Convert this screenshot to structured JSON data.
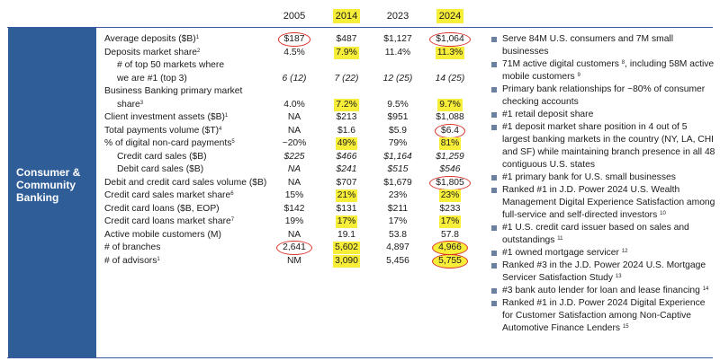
{
  "columns": [
    {
      "label": "2005",
      "highlight": false
    },
    {
      "label": "2014",
      "highlight": true
    },
    {
      "label": "2023",
      "highlight": false
    },
    {
      "label": "2024",
      "highlight": true
    }
  ],
  "segment": {
    "title": "Consumer & Community Banking"
  },
  "rows": [
    {
      "label": "Average deposits ($B)",
      "sup": "1",
      "indent": false,
      "italic": false,
      "values": [
        "$187",
        "$487",
        "$1,127",
        "$1,064"
      ],
      "highlight": [
        false,
        false,
        false,
        false
      ],
      "circle": [
        true,
        false,
        false,
        true
      ]
    },
    {
      "label": "Deposits market share",
      "sup": "2",
      "indent": false,
      "italic": false,
      "values": [
        "4.5%",
        "7.9%",
        "11.4%",
        "11.3%"
      ],
      "highlight": [
        false,
        true,
        false,
        true
      ],
      "circle": [
        false,
        false,
        false,
        false
      ]
    },
    {
      "label": "# of top 50 markets where",
      "sup": "",
      "indent": true,
      "italic": false,
      "values": [
        "",
        "",
        "",
        ""
      ],
      "highlight": [
        false,
        false,
        false,
        false
      ],
      "circle": [
        false,
        false,
        false,
        false
      ]
    },
    {
      "label": "we are #1 (top 3)",
      "sup": "",
      "indent": true,
      "italic": true,
      "values": [
        "6 (12)",
        "7 (22)",
        "12 (25)",
        "14 (25)"
      ],
      "highlight": [
        false,
        false,
        false,
        false
      ],
      "circle": [
        false,
        false,
        false,
        false
      ]
    },
    {
      "label": "Business Banking primary market",
      "sup": "",
      "indent": false,
      "italic": false,
      "values": [
        "",
        "",
        "",
        ""
      ],
      "highlight": [
        false,
        false,
        false,
        false
      ],
      "circle": [
        false,
        false,
        false,
        false
      ]
    },
    {
      "label": "share",
      "sup": "3",
      "indent": true,
      "italic": false,
      "values": [
        "4.0%",
        "7.2%",
        "9.5%",
        "9.7%"
      ],
      "highlight": [
        false,
        true,
        false,
        true
      ],
      "circle": [
        false,
        false,
        false,
        false
      ]
    },
    {
      "label": "Client investment assets ($B)",
      "sup": "1",
      "indent": false,
      "italic": false,
      "values": [
        "NA",
        "$213",
        "$951",
        "$1,088"
      ],
      "highlight": [
        false,
        false,
        false,
        false
      ],
      "circle": [
        false,
        false,
        false,
        false
      ]
    },
    {
      "label": "Total payments volume ($T)",
      "sup": "4",
      "indent": false,
      "italic": false,
      "values": [
        "NA",
        "$1.6",
        "$5.9",
        "$6.4"
      ],
      "highlight": [
        false,
        false,
        false,
        false
      ],
      "circle": [
        false,
        false,
        false,
        true
      ]
    },
    {
      "label": "% of digital non-card payments",
      "sup": "5",
      "indent": false,
      "italic": false,
      "values": [
        "~20%",
        "49%",
        "79%",
        "81%"
      ],
      "highlight": [
        false,
        true,
        false,
        true
      ],
      "circle": [
        false,
        false,
        false,
        false
      ]
    },
    {
      "label": "Credit card sales ($B)",
      "sup": "",
      "indent": true,
      "italic": true,
      "values": [
        "$225",
        "$466",
        "$1,164",
        "$1,259"
      ],
      "highlight": [
        false,
        false,
        false,
        false
      ],
      "circle": [
        false,
        false,
        false,
        false
      ]
    },
    {
      "label": "Debit card sales ($B)",
      "sup": "",
      "indent": true,
      "italic": true,
      "values": [
        "NA",
        "$241",
        "$515",
        "$546"
      ],
      "highlight": [
        false,
        false,
        false,
        false
      ],
      "circle": [
        false,
        false,
        false,
        false
      ]
    },
    {
      "label": "Debit and credit card sales volume ($B)",
      "sup": "",
      "indent": false,
      "italic": false,
      "values": [
        "NA",
        "$707",
        "$1,679",
        "$1,805"
      ],
      "highlight": [
        false,
        false,
        false,
        false
      ],
      "circle": [
        false,
        false,
        false,
        true
      ]
    },
    {
      "label": "Credit card sales market share",
      "sup": "6",
      "indent": false,
      "italic": false,
      "values": [
        "15%",
        "21%",
        "23%",
        "23%"
      ],
      "highlight": [
        false,
        true,
        false,
        true
      ],
      "circle": [
        false,
        false,
        false,
        false
      ]
    },
    {
      "label": "Credit card loans ($B, EOP)",
      "sup": "",
      "indent": false,
      "italic": false,
      "values": [
        "$142",
        "$131",
        "$211",
        "$233"
      ],
      "highlight": [
        false,
        false,
        false,
        false
      ],
      "circle": [
        false,
        false,
        false,
        false
      ]
    },
    {
      "label": "Credit card loans market share",
      "sup": "7",
      "indent": false,
      "italic": false,
      "values": [
        "19%",
        "17%",
        "17%",
        "17%"
      ],
      "highlight": [
        false,
        true,
        false,
        true
      ],
      "circle": [
        false,
        false,
        false,
        false
      ]
    },
    {
      "label": "Active mobile customers (M)",
      "sup": "",
      "indent": false,
      "italic": false,
      "values": [
        "NA",
        "19.1",
        "53.8",
        "57.8"
      ],
      "highlight": [
        false,
        false,
        false,
        false
      ],
      "circle": [
        false,
        false,
        false,
        false
      ]
    },
    {
      "label": "# of branches",
      "sup": "",
      "indent": false,
      "italic": false,
      "values": [
        "2,641",
        "5,602",
        "4,897",
        "4,966"
      ],
      "highlight": [
        false,
        true,
        false,
        true
      ],
      "circle": [
        true,
        false,
        false,
        true
      ]
    },
    {
      "label": "# of advisors",
      "sup": "1",
      "indent": false,
      "italic": false,
      "values": [
        "NM",
        "3,090",
        "5,456",
        "5,755"
      ],
      "highlight": [
        false,
        true,
        false,
        true
      ],
      "circle": [
        false,
        false,
        false,
        true
      ]
    }
  ],
  "bullets": [
    {
      "lines": [
        {
          "text": "Serve 84M U.S. consumers and 7M small",
          "sup": ""
        },
        {
          "text": "businesses",
          "sup": ""
        }
      ]
    },
    {
      "lines": [
        {
          "text": "71M active digital customers",
          "sup": "8"
        },
        {
          "text": ", including 58M",
          "sup": ""
        },
        {
          "text": "active mobile customers",
          "sup": "9"
        }
      ]
    },
    {
      "lines": [
        {
          "text": "Primary bank relationships for ~80% of consumer",
          "sup": ""
        },
        {
          "text": "checking accounts",
          "sup": ""
        }
      ]
    },
    {
      "lines": [
        {
          "text": "#1 retail deposit share",
          "sup": ""
        }
      ]
    },
    {
      "lines": [
        {
          "text": "#1 deposit market share position in 4 out of 5",
          "sup": ""
        },
        {
          "text": "largest banking markets in the country (NY, LA,",
          "sup": ""
        },
        {
          "text": "CHI and SF) while maintaining branch presence",
          "sup": ""
        },
        {
          "text": "in all 48 contiguous U.S. states",
          "sup": ""
        }
      ]
    },
    {
      "lines": [
        {
          "text": "#1 primary bank for U.S. small businesses",
          "sup": ""
        }
      ]
    },
    {
      "lines": [
        {
          "text": "Ranked #1 in J.D. Power 2024 U.S. Wealth",
          "sup": ""
        },
        {
          "text": "Management Digital Experience Satisfaction",
          "sup": ""
        },
        {
          "text": "among full-service and self-directed investors",
          "sup": "10"
        }
      ]
    },
    {
      "lines": [
        {
          "text": "#1 U.S. credit card issuer based on sales and",
          "sup": ""
        },
        {
          "text": "outstandings",
          "sup": "11"
        }
      ]
    },
    {
      "lines": [
        {
          "text": "#1 owned mortgage servicer",
          "sup": "12"
        }
      ]
    },
    {
      "lines": [
        {
          "text": "Ranked #3 in the J.D. Power 2024 U.S. Mortgage",
          "sup": ""
        },
        {
          "text": "Servicer Satisfaction Study",
          "sup": "13"
        }
      ]
    },
    {
      "lines": [
        {
          "text": "#3 bank auto lender for loan and lease",
          "sup": ""
        },
        {
          "text": "financing",
          "sup": "14"
        }
      ]
    },
    {
      "lines": [
        {
          "text": "Ranked #1 in J.D. Power 2024 Digital Experience",
          "sup": ""
        },
        {
          "text": "for Customer Satisfaction among Non-Captive",
          "sup": ""
        },
        {
          "text": "Automotive Finance Lenders",
          "sup": "15"
        }
      ]
    }
  ],
  "colors": {
    "segment_bg": "#2f5d98",
    "rule": "#3c5aa0",
    "highlight": "#f7ee3a",
    "circle": "#d9342b",
    "bullet": "#6b7f9e"
  }
}
